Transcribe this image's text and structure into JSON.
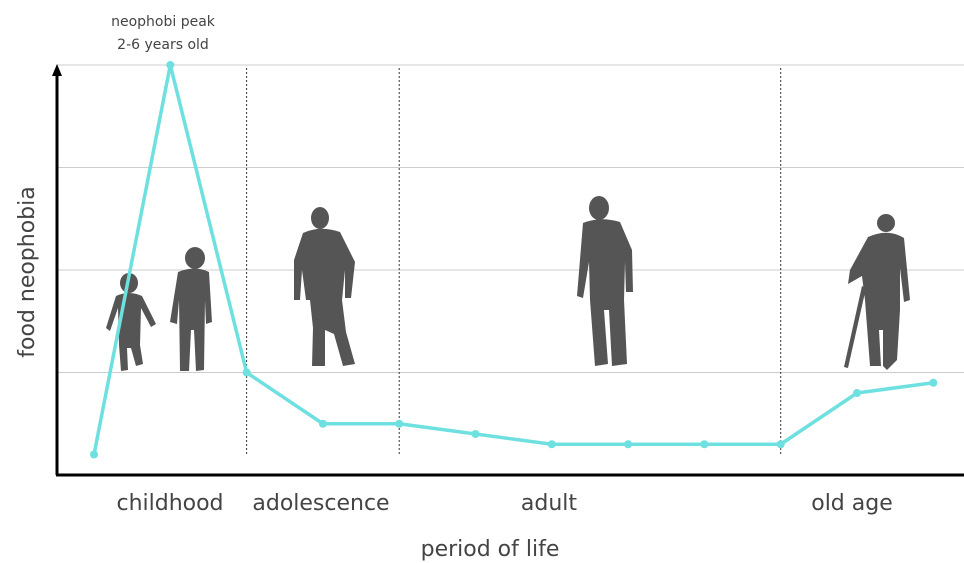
{
  "chart_data": {
    "type": "line",
    "title": "",
    "xlabel": "period of life",
    "ylabel": "food neophobia",
    "categories": [
      "childhood",
      "adolescence",
      "adult",
      "old age"
    ],
    "annotation": {
      "line1": "neophobi peak",
      "line2": "2-6 years old"
    },
    "grid": true,
    "series": [
      {
        "color": "#6ee0e0",
        "points": [
          {
            "x": 0,
            "y": 0.2
          },
          {
            "x": 1,
            "y": 4.0
          },
          {
            "x": 2,
            "y": 1.0
          },
          {
            "x": 3,
            "y": 0.5
          },
          {
            "x": 4,
            "y": 0.5
          },
          {
            "x": 5,
            "y": 0.4
          },
          {
            "x": 6,
            "y": 0.3
          },
          {
            "x": 7,
            "y": 0.3
          },
          {
            "x": 8,
            "y": 0.3
          },
          {
            "x": 9,
            "y": 0.3
          },
          {
            "x": 10,
            "y": 0.8
          },
          {
            "x": 11,
            "y": 0.9
          }
        ]
      }
    ],
    "period_dividers_x": [
      2,
      4,
      9
    ]
  }
}
